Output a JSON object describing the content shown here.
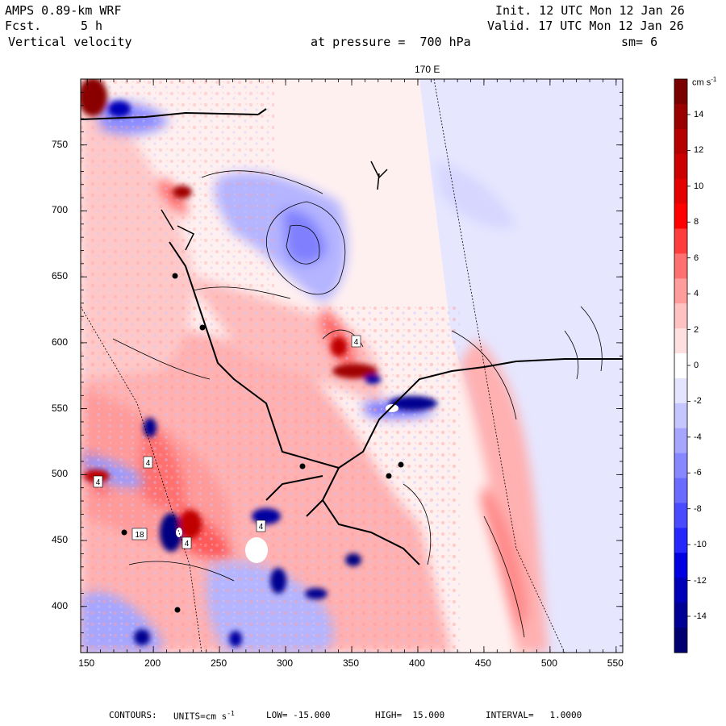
{
  "header": {
    "model": "AMPS 0.89-km WRF",
    "fcst_label": "Fcst.",
    "fcst_value": "5 h",
    "field": "Vertical velocity",
    "init": "Init. 12 UTC Mon 12 Jan 26",
    "valid": "Valid. 17 UTC Mon 12 Jan 26",
    "pressure": "at pressure =  700 hPa",
    "smoothing": "sm= 6"
  },
  "map": {
    "meridian_label": "170 E",
    "x_ticks": [
      "150",
      "200",
      "250",
      "300",
      "350",
      "400",
      "450",
      "500",
      "550"
    ],
    "y_ticks": [
      "750",
      "700",
      "650",
      "600",
      "550",
      "500",
      "450",
      "400"
    ],
    "x_range": [
      145,
      555
    ],
    "y_range": [
      365,
      800
    ],
    "station_labels": [
      "4",
      "4",
      "4",
      "4",
      "4",
      "18"
    ]
  },
  "colorbar": {
    "units": "cm s",
    "units_exp": "-1",
    "levels": [
      "14",
      "12",
      "10",
      "8",
      "6",
      "4",
      "2",
      "0",
      "-2",
      "-4",
      "-6",
      "-8",
      "-10",
      "-12",
      "-14"
    ],
    "colors": [
      "#7a0000",
      "#9a0000",
      "#b50000",
      "#cc0000",
      "#e30000",
      "#ff0000",
      "#ff3d3d",
      "#ff7070",
      "#ff9d9d",
      "#ffc2c2",
      "#ffe0e0",
      "#ffffff",
      "#e4e4ff",
      "#c6c6ff",
      "#a6a6ff",
      "#8787ff",
      "#6b6bff",
      "#4a4aff",
      "#2626ff",
      "#0000e0",
      "#0000b8",
      "#000094",
      "#000070"
    ]
  },
  "footer": {
    "contours": "CONTOURS:",
    "units": "UNITS=cm s",
    "units_exp": "-1",
    "low": "LOW= -15.000",
    "high": "HIGH=  15.000",
    "interval": "INTERVAL=   1.0000"
  }
}
